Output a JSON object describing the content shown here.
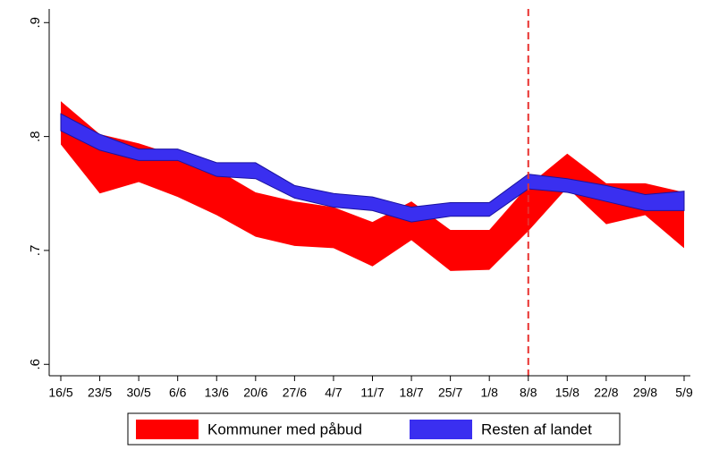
{
  "chart_data": {
    "type": "band",
    "categories": [
      "16/5",
      "23/5",
      "30/5",
      "6/6",
      "13/6",
      "20/6",
      "27/6",
      "4/7",
      "11/7",
      "18/7",
      "25/7",
      "1/8",
      "8/8",
      "15/8",
      "22/8",
      "29/8",
      "5/9"
    ],
    "series": [
      {
        "name": "Kommuner med påbud",
        "color": "#ff0000",
        "upper": [
          0.831,
          0.802,
          0.794,
          0.783,
          0.771,
          0.751,
          0.743,
          0.738,
          0.725,
          0.743,
          0.718,
          0.718,
          0.757,
          0.785,
          0.759,
          0.759,
          0.751
        ],
        "lower": [
          0.793,
          0.75,
          0.76,
          0.747,
          0.731,
          0.712,
          0.704,
          0.702,
          0.686,
          0.709,
          0.682,
          0.683,
          0.717,
          0.755,
          0.723,
          0.731,
          0.702
        ]
      },
      {
        "name": "Resten af landet",
        "color": "#3a2ff0",
        "upper": [
          0.82,
          0.802,
          0.789,
          0.789,
          0.777,
          0.777,
          0.757,
          0.75,
          0.747,
          0.738,
          0.742,
          0.742,
          0.767,
          0.763,
          0.757,
          0.749,
          0.752
        ],
        "lower": [
          0.805,
          0.788,
          0.779,
          0.779,
          0.765,
          0.763,
          0.746,
          0.738,
          0.735,
          0.725,
          0.73,
          0.73,
          0.754,
          0.751,
          0.743,
          0.735,
          0.735
        ]
      }
    ],
    "ylim": [
      0.59,
      0.912
    ],
    "yticks": [
      {
        "value": 0.6,
        "label": ".6"
      },
      {
        "value": 0.7,
        "label": ".7"
      },
      {
        "value": 0.8,
        "label": ".8"
      },
      {
        "value": 0.9,
        "label": ".9"
      }
    ],
    "vline": "8/8",
    "vline_color": "#e8312f",
    "legend": "bottom"
  }
}
